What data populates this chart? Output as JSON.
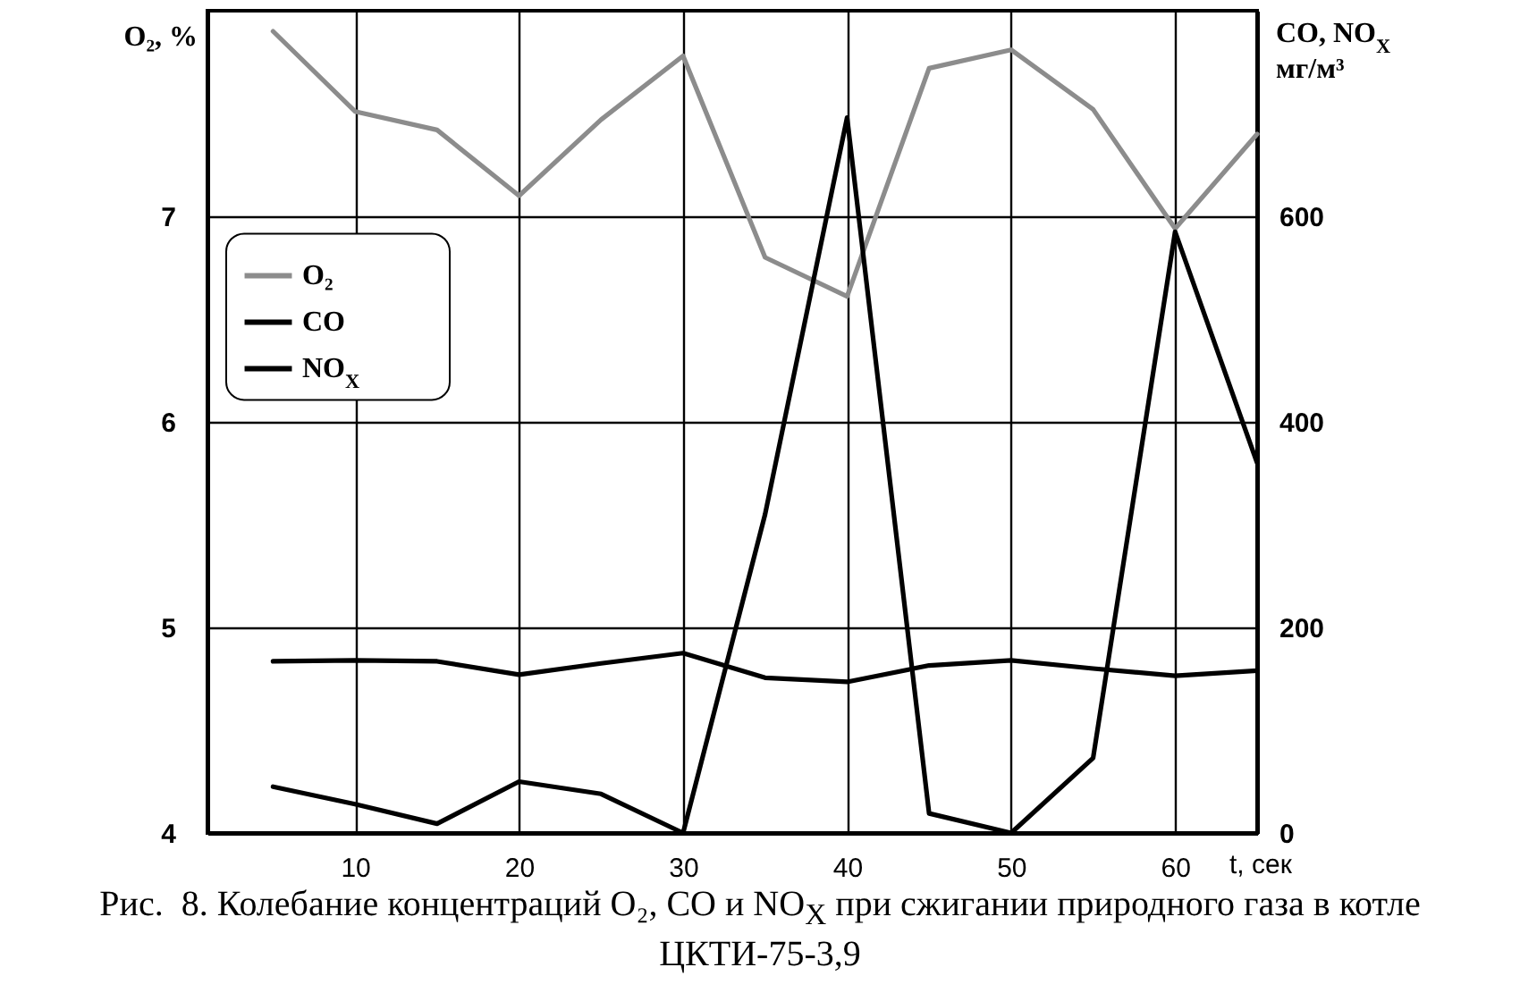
{
  "chart_data": {
    "type": "line",
    "x": [
      5,
      10,
      15,
      20,
      25,
      30,
      35,
      40,
      45,
      50,
      55,
      60,
      65
    ],
    "series": [
      {
        "name": "O₂",
        "color": "#8c8c8c",
        "values": [
          7.9,
          7.51,
          7.42,
          7.1,
          7.47,
          7.78,
          6.8,
          6.61,
          7.72,
          7.81,
          7.52,
          6.94,
          7.4
        ]
      },
      {
        "name": "CO",
        "color": "#000000",
        "axis": "y2",
        "values": [
          45,
          28,
          9,
          50,
          38,
          0,
          310,
          696,
          19,
          0,
          73,
          585,
          360
        ]
      },
      {
        "name": "NO$_{X}$",
        "color": "#000000",
        "axis": "y2",
        "values": [
          167,
          168,
          167,
          154,
          165,
          175,
          151,
          147,
          163,
          168,
          160,
          153,
          158
        ]
      }
    ],
    "xlim": [
      1,
      65
    ],
    "xticks": [
      10,
      20,
      30,
      40,
      50,
      60
    ],
    "ylim": [
      4,
      8
    ],
    "yticks": [
      4,
      5,
      6,
      7
    ],
    "y2lim": [
      0,
      800
    ],
    "y2ticks": [
      0,
      200,
      400,
      600
    ],
    "xlabel": "t, сек",
    "ylabel": "O₂, %",
    "y2label": "CO, NO$_{X}$\nмг/м³",
    "grid": true,
    "legend": "top left",
    "marker": "none",
    "line_style": "solid",
    "annotations": [
      "Рис.  8. Колебание концентраций O₂, CO и NO$_{X}$ при сжигании природного газа в котле ЦКТИ-75-3,9"
    ]
  }
}
